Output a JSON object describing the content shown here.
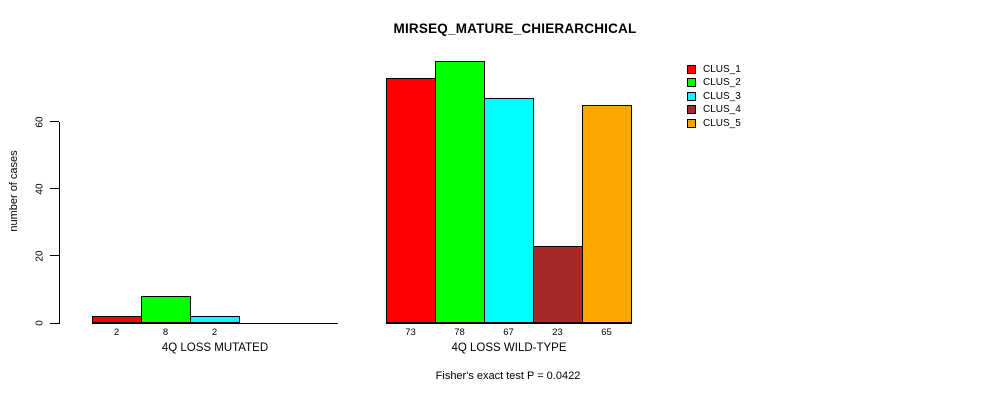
{
  "title": "MIRSEQ_MATURE_CHIERARCHICAL",
  "footer_note": "Fisher's exact test P = 0.0422",
  "y_axis": {
    "label": "number of cases",
    "tick_labels": [
      "0",
      "20",
      "40",
      "60"
    ]
  },
  "legend": {
    "position": "topright",
    "entries": [
      {
        "label": "CLUS_1",
        "color": "#FF0000"
      },
      {
        "label": "CLUS_2",
        "color": "#00FF00"
      },
      {
        "label": "CLUS_3",
        "color": "#00FFFF"
      },
      {
        "label": "CLUS_4",
        "color": "#A52A2A"
      },
      {
        "label": "CLUS_5",
        "color": "#FFA500"
      }
    ]
  },
  "chart_data": {
    "type": "bar",
    "title": "MIRSEQ_MATURE_CHIERARCHICAL",
    "xlabel": "",
    "ylabel": "number of cases",
    "ylim": [
      0,
      80
    ],
    "axis_ticks": [
      0,
      20,
      40,
      60
    ],
    "grid": false,
    "legend_position": "topright",
    "series_names": [
      "CLUS_1",
      "CLUS_2",
      "CLUS_3",
      "CLUS_4",
      "CLUS_5"
    ],
    "series_colors": [
      "#FF0000",
      "#00FF00",
      "#00FFFF",
      "#A52A2A",
      "#FFA500"
    ],
    "groups": [
      {
        "label": "4Q LOSS MUTATED",
        "values": [
          2,
          8,
          2,
          0,
          0
        ]
      },
      {
        "label": "4Q LOSS WILD-TYPE",
        "values": [
          73,
          78,
          67,
          23,
          65
        ]
      }
    ],
    "bar_value_labels_shown_for_nonzero_only": true,
    "annotation": "Fisher's exact test P = 0.0422"
  }
}
